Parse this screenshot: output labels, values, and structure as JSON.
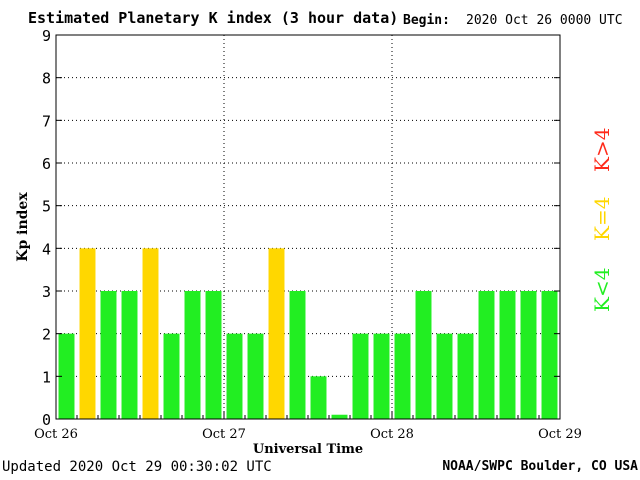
{
  "header": {
    "title": "Estimated Planetary K index (3 hour data)",
    "begin_label": "Begin:",
    "begin_value": "2020 Oct 26 0000 UTC"
  },
  "footer": {
    "updated": "Updated 2020 Oct 29 00:30:02 UTC",
    "source": "NOAA/SWPC Boulder, CO USA"
  },
  "legend": {
    "high": {
      "label": "K>4",
      "color": "#ff2a1a"
    },
    "mid": {
      "label": "K=4",
      "color": "#ffd700"
    },
    "low": {
      "label": "K<4",
      "color": "#22ee22"
    }
  },
  "chart_data": {
    "type": "bar",
    "title": "Estimated Planetary K index (3 hour data)",
    "xlabel": "Universal Time",
    "ylabel": "Kp index",
    "ylim": [
      0,
      9
    ],
    "yticks": [
      0,
      1,
      2,
      3,
      4,
      5,
      6,
      7,
      8,
      9
    ],
    "xtick_labels": [
      "Oct 26",
      "Oct 27",
      "Oct 28",
      "Oct 29"
    ],
    "interval_hours": 3,
    "values": [
      2,
      4,
      3,
      3,
      4,
      2,
      3,
      3,
      2,
      2,
      4,
      3,
      1,
      0.1,
      2,
      2,
      2,
      3,
      2,
      2,
      3,
      3,
      3,
      3
    ],
    "colors": {
      "below4": "#22ee22",
      "equal4": "#ffd700",
      "above4": "#ff2a1a"
    },
    "grid": true
  }
}
